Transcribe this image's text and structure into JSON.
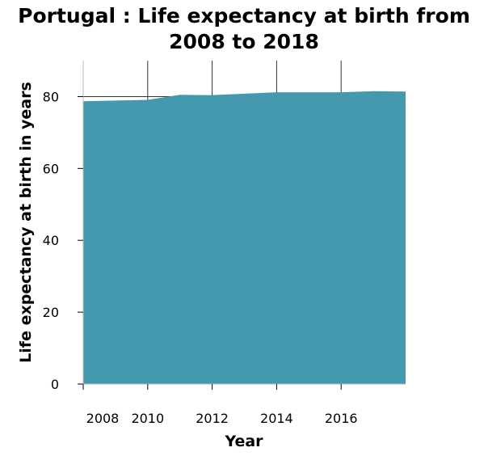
{
  "chart_data": {
    "type": "area",
    "title_lines": [
      "Portugal : Life expectancy at birth from",
      "2008 to 2018"
    ],
    "xlabel": "Year",
    "ylabel": "Life expectancy at birth in years",
    "x": [
      2008,
      2009,
      2010,
      2011,
      2012,
      2013,
      2014,
      2015,
      2016,
      2017,
      2018
    ],
    "values": [
      78.7,
      78.9,
      79.1,
      80.5,
      80.4,
      80.8,
      81.2,
      81.2,
      81.2,
      81.5,
      81.4
    ],
    "xlim": [
      2008,
      2018
    ],
    "ylim": [
      0,
      90
    ],
    "xticks": [
      2008,
      2010,
      2012,
      2014,
      2016
    ],
    "yticks": [
      0,
      20,
      40,
      60,
      80
    ],
    "grid": true,
    "fill_color": "#4599af"
  }
}
